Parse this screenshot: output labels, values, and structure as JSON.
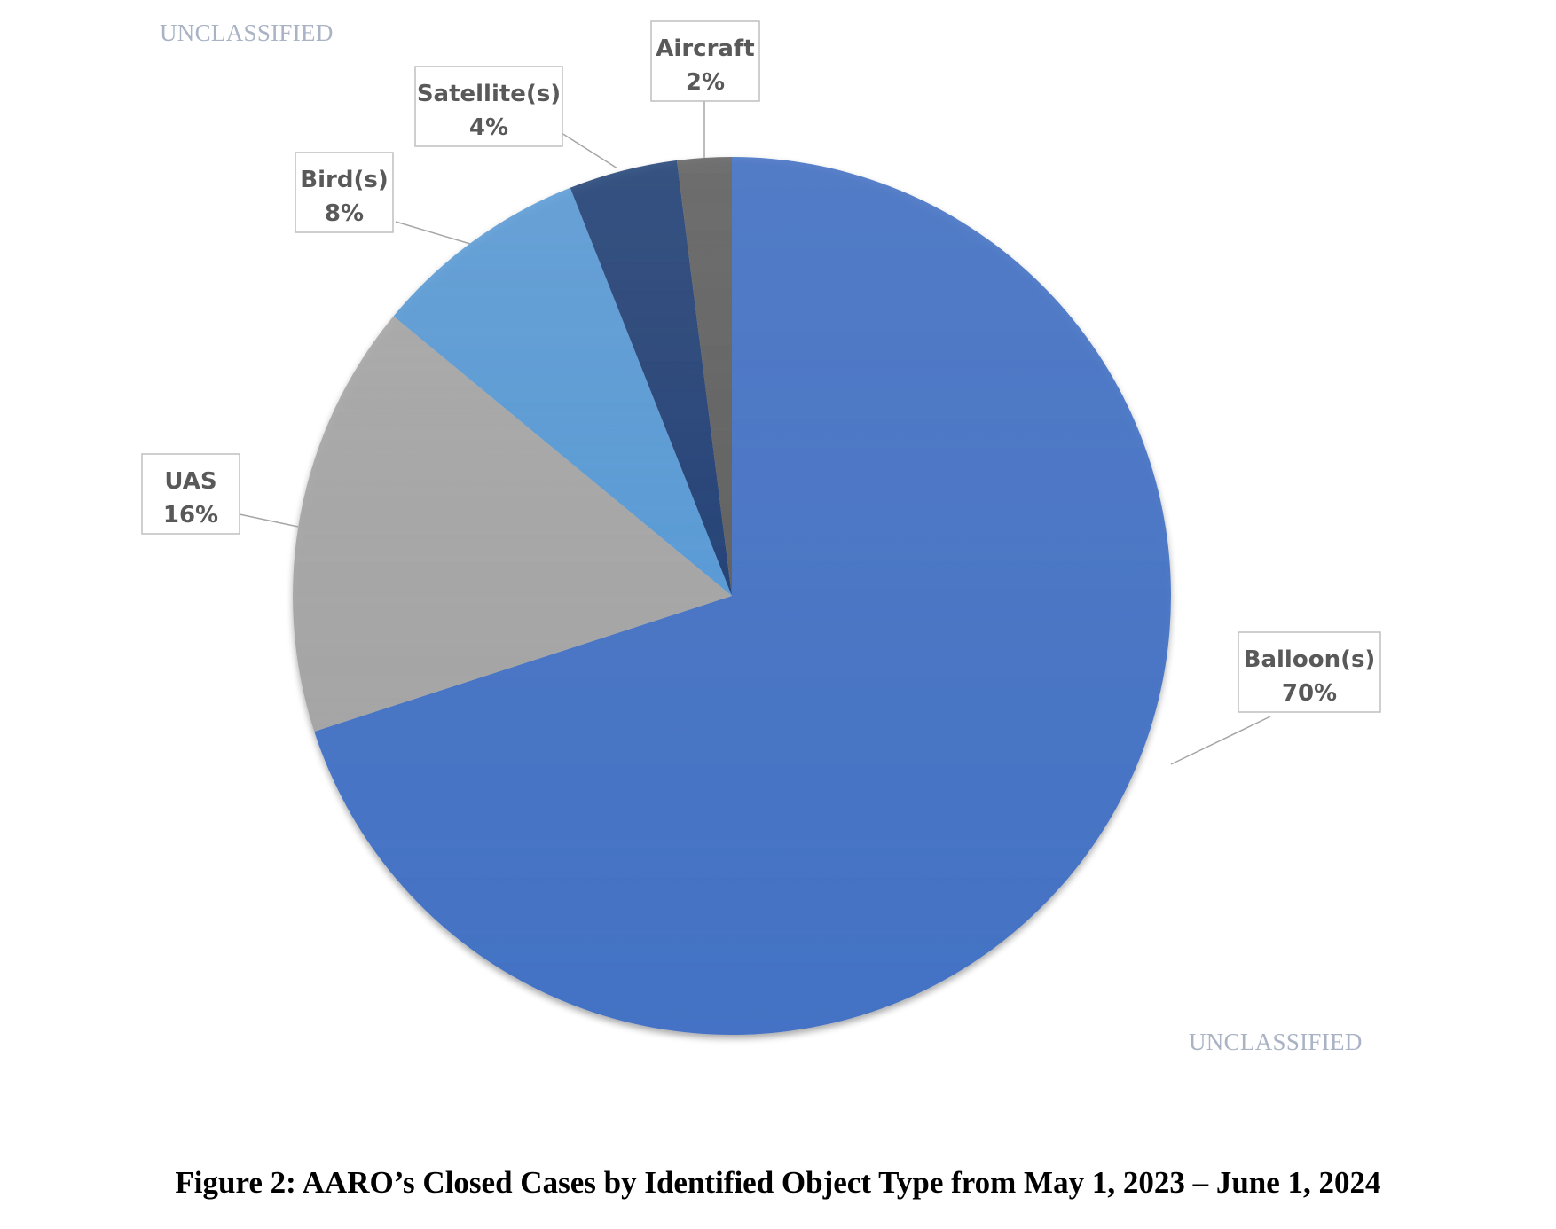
{
  "markings": {
    "top": "UNCLASSIFIED",
    "bottom": "UNCLASSIFIED"
  },
  "caption": "Figure 2:  AARO’s Closed Cases by Identified Object Type from May 1, 2023 – June 1, 2024",
  "chart_data": {
    "type": "pie",
    "start_angle_deg": 0,
    "direction": "clockwise",
    "title": "",
    "slices": [
      {
        "label": "Balloon(s)",
        "value": 70,
        "value_label": "70%",
        "color": "#4472c4"
      },
      {
        "label": "UAS",
        "value": 16,
        "value_label": "16%",
        "color": "#a5a5a5"
      },
      {
        "label": "Bird(s)",
        "value": 8,
        "value_label": "8%",
        "color": "#5b9bd5"
      },
      {
        "label": "Satellite(s)",
        "value": 4,
        "value_label": "4%",
        "color": "#264478"
      },
      {
        "label": "Aircraft",
        "value": 2,
        "value_label": "2%",
        "color": "#636363"
      }
    ],
    "legend": "none",
    "data_labels": "callouts"
  }
}
